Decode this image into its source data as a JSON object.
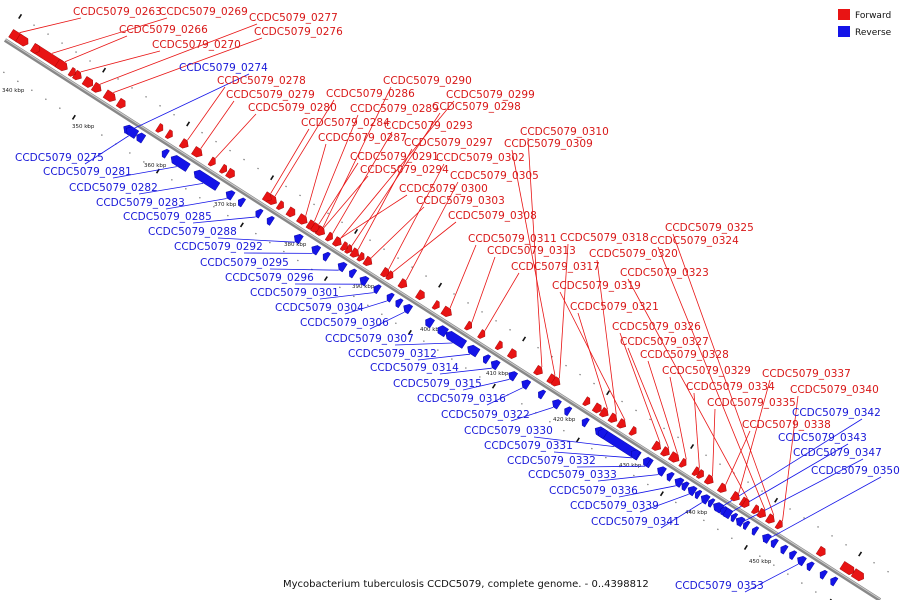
{
  "caption": "Mycobacterium tuberculosis CCDC5079, complete genome. - 0..4398812",
  "legend": {
    "forward_label": "Forward",
    "reverse_label": "Reverse",
    "forward_color": "#e81414",
    "reverse_color": "#1414e8"
  },
  "scale_labels": [
    "340 kbp",
    "350 kbp",
    "360 kbp",
    "370 kbp",
    "380 kbp",
    "390 kbp",
    "400 kbp",
    "410 kbp",
    "420 kbp",
    "430 kbp",
    "440 kbp",
    "450 kbp"
  ],
  "forward_genes": [
    "CCDC5079_0263",
    "CCDC5079_0269",
    "CCDC5079_0277",
    "CCDC5079_0266",
    "CCDC5079_0276",
    "CCDC5079_0270",
    "CCDC5079_0278",
    "CCDC5079_0290",
    "CCDC5079_0279",
    "CCDC5079_0286",
    "CCDC5079_0299",
    "CCDC5079_0280",
    "CCDC5079_0289",
    "CCDC5079_0298",
    "CCDC5079_0284",
    "CCDC5079_0293",
    "CCDC5079_0287",
    "CCDC5079_0310",
    "CCDC5079_0297",
    "CCDC5079_0309",
    "CCDC5079_0291",
    "CCDC5079_0302",
    "CCDC5079_0294",
    "CCDC5079_0305",
    "CCDC5079_0300",
    "CCDC5079_0303",
    "CCDC5079_0308",
    "CCDC5079_0325",
    "CCDC5079_0311",
    "CCDC5079_0318",
    "CCDC5079_0324",
    "CCDC5079_0313",
    "CCDC5079_0320",
    "CCDC5079_0317",
    "CCDC5079_0323",
    "CCDC5079_0319",
    "CCDC5079_0321",
    "CCDC5079_0326",
    "CCDC5079_0327",
    "CCDC5079_0328",
    "CCDC5079_0329",
    "CCDC5079_0337",
    "CCDC5079_0334",
    "CCDC5079_0340",
    "CCDC5079_0335",
    "CCDC5079_0338"
  ],
  "reverse_genes": [
    "CCDC5079_0274",
    "CCDC5079_0275",
    "CCDC5079_0281",
    "CCDC5079_0282",
    "CCDC5079_0283",
    "CCDC5079_0285",
    "CCDC5079_0288",
    "CCDC5079_0292",
    "CCDC5079_0295",
    "CCDC5079_0296",
    "CCDC5079_0301",
    "CCDC5079_0304",
    "CCDC5079_0306",
    "CCDC5079_0307",
    "CCDC5079_0312",
    "CCDC5079_0314",
    "CCDC5079_0315",
    "CCDC5079_0316",
    "CCDC5079_0322",
    "CCDC5079_0330",
    "CCDC5079_0331",
    "CCDC5079_0332",
    "CCDC5079_0333",
    "CCDC5079_0336",
    "CCDC5079_0339",
    "CCDC5079_0341",
    "CCDC5079_0342",
    "CCDC5079_0343",
    "CCDC5079_0347",
    "CCDC5079_0350",
    "CCDC5079_0353"
  ]
}
